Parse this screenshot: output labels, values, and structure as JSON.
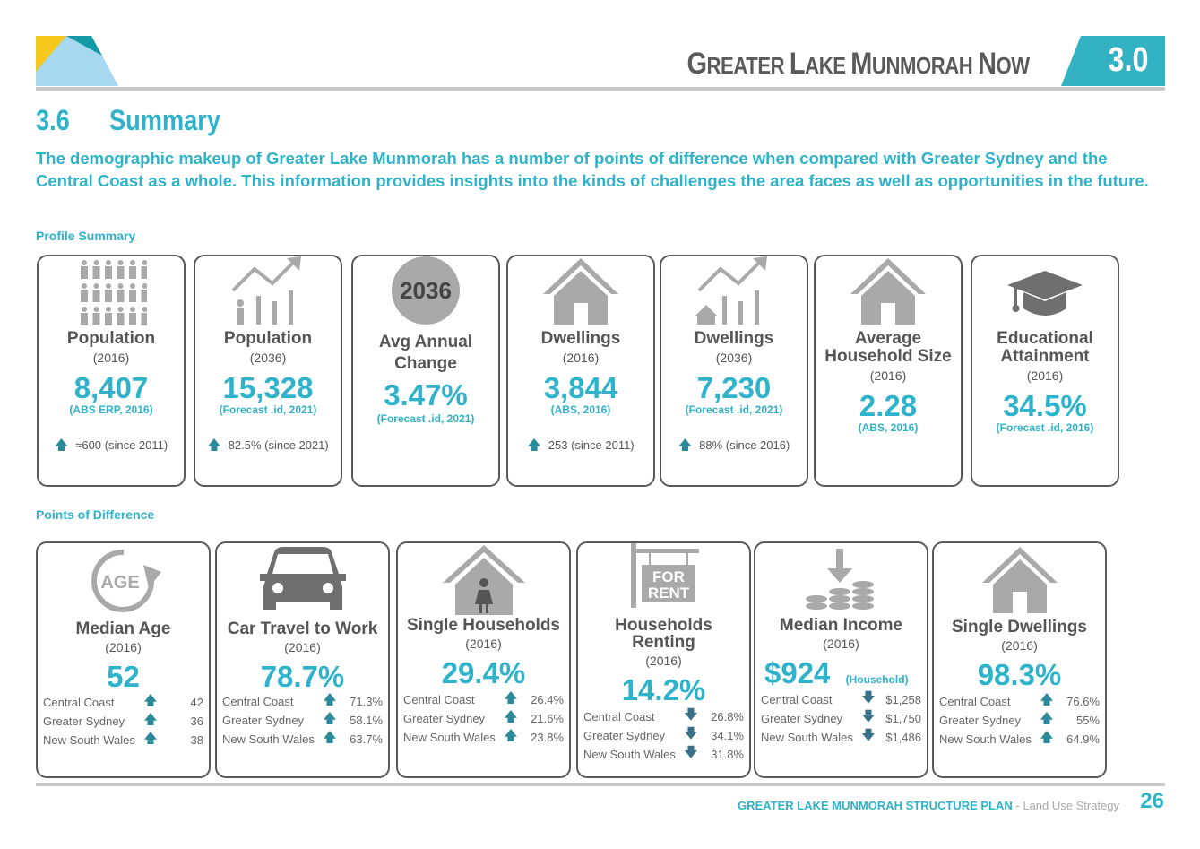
{
  "header": {
    "title_parts": [
      {
        "big": "G",
        "small": "REATER "
      },
      {
        "big": "L",
        "small": "AKE "
      },
      {
        "big": "M",
        "small": "UNMORAH "
      },
      {
        "big": "N",
        "small": "OW"
      }
    ],
    "section": "3.0"
  },
  "section": {
    "number": "3.6",
    "title": "Summary"
  },
  "intro": "The demographic makeup of Greater Lake Munmorah has a number of points of difference when compared with Greater Sydney and the Central Coast as a whole. This information provides insights into the kinds of challenges the area faces as well as opportunities in the future.",
  "profile_heading": "Profile Summary",
  "profile_cards": [
    {
      "icon": "people-icon",
      "title": "Population",
      "year": "(2016)",
      "value": "8,407",
      "source": "(ABS ERP, 2016)",
      "note": "≈600 (since 2011)"
    },
    {
      "icon": "growth-chart-person-icon",
      "title": "Population",
      "year": "(2036)",
      "value": "15,328",
      "source": "(Forecast .id, 2021)",
      "note": "82.5% (since 2021)"
    },
    {
      "icon": "year-circle-icon",
      "icon_text": "2036",
      "title": "Avg Annual Change",
      "year": "",
      "value": "3.47%",
      "source": "(Forecast .id, 2021)",
      "note": ""
    },
    {
      "icon": "house-icon",
      "title": "Dwellings",
      "year": "(2016)",
      "value": "3,844",
      "source": "(ABS, 2016)",
      "note": "253 (since 2011)"
    },
    {
      "icon": "growth-chart-house-icon",
      "title": "Dwellings",
      "year": "(2036)",
      "value": "7,230",
      "source": "(Forecast .id, 2021)",
      "note": "88% (since 2016)"
    },
    {
      "icon": "house-icon",
      "title": "Average Household Size",
      "year": "(2016)",
      "value": "2.28",
      "source": "(ABS, 2016)",
      "note": ""
    },
    {
      "icon": "graduation-cap-icon",
      "title": "Educational Attainment",
      "year": "(2016)",
      "value": "34.5%",
      "source": "(Forecast .id, 2016)",
      "note": ""
    }
  ],
  "difference_heading": "Points of Difference",
  "difference_cards": [
    {
      "icon": "age-icon",
      "icon_text": "AGE",
      "title": "Median Age",
      "year": "(2016)",
      "value": "52",
      "value_note": "",
      "rows": [
        {
          "label": "Central Coast",
          "dir": "up",
          "value": "42"
        },
        {
          "label": "Greater Sydney",
          "dir": "up",
          "value": "36"
        },
        {
          "label": "New South Wales",
          "dir": "up",
          "value": "38"
        }
      ]
    },
    {
      "icon": "car-icon",
      "title": "Car Travel to Work",
      "year": "(2016)",
      "value": "78.7%",
      "value_note": "",
      "rows": [
        {
          "label": "Central Coast",
          "dir": "up",
          "value": "71.3%"
        },
        {
          "label": "Greater Sydney",
          "dir": "up",
          "value": "58.1%"
        },
        {
          "label": "New South Wales",
          "dir": "up",
          "value": "63.7%"
        }
      ]
    },
    {
      "icon": "house-person-icon",
      "title": "Single Households",
      "year": "(2016)",
      "value": "29.4%",
      "value_note": "",
      "rows": [
        {
          "label": "Central Coast",
          "dir": "up",
          "value": "26.4%"
        },
        {
          "label": "Greater Sydney",
          "dir": "up",
          "value": "21.6%"
        },
        {
          "label": "New South Wales",
          "dir": "up",
          "value": "23.8%"
        }
      ]
    },
    {
      "icon": "for-rent-sign-icon",
      "icon_text": [
        "FOR",
        "RENT"
      ],
      "title": "Households Renting",
      "year": "(2016)",
      "value": "14.2%",
      "value_note": "",
      "rows": [
        {
          "label": "Central Coast",
          "dir": "down",
          "value": "26.8%"
        },
        {
          "label": "Greater Sydney",
          "dir": "down",
          "value": "34.1%"
        },
        {
          "label": "New South Wales",
          "dir": "down",
          "value": "31.8%"
        }
      ]
    },
    {
      "icon": "coins-icon",
      "title": "Median Income",
      "year": "(2016)",
      "value": "$924",
      "value_note": "(Household)",
      "rows": [
        {
          "label": "Central Coast",
          "dir": "down",
          "value": "$1,258"
        },
        {
          "label": "Greater Sydney",
          "dir": "down",
          "value": "$1,750"
        },
        {
          "label": "New South Wales",
          "dir": "down",
          "value": "$1,486"
        }
      ]
    },
    {
      "icon": "house-icon",
      "title": "Single Dwellings",
      "year": "(2016)",
      "value": "98.3%",
      "value_note": "",
      "rows": [
        {
          "label": "Central Coast",
          "dir": "up",
          "value": "76.6%"
        },
        {
          "label": "Greater Sydney",
          "dir": "up",
          "value": "55%"
        },
        {
          "label": "New South Wales",
          "dir": "up",
          "value": "64.9%"
        }
      ]
    }
  ],
  "footer": {
    "plan": "GREATER LAKE MUNMORAH STRUCTURE PLAN",
    "subtitle": " - Land Use Strategy",
    "page": "26"
  },
  "colors": {
    "accent": "#2fb3cb",
    "text": "#555555",
    "icon": "#a9a9a9",
    "arrow": "#2a8a9a"
  }
}
